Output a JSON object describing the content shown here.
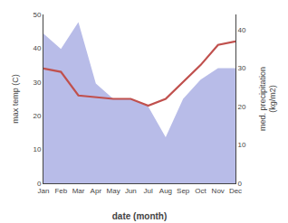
{
  "chart_data": {
    "type": "line",
    "categories": [
      "Jan",
      "Feb",
      "Mar",
      "Apr",
      "May",
      "Jun",
      "Jul",
      "Aug",
      "Sep",
      "Oct",
      "Nov",
      "Dec"
    ],
    "series": [
      {
        "type": "area",
        "axis": "y2",
        "color": "#b8bce8",
        "values": [
          39,
          35,
          42,
          26,
          22,
          22,
          20,
          12,
          22,
          27,
          30,
          30
        ]
      },
      {
        "type": "line",
        "color": "#c0504d",
        "values": [
          34,
          33,
          26,
          25.5,
          25,
          25,
          23,
          25,
          30,
          35,
          41,
          42
        ]
      }
    ],
    "xlabel": "date (month)",
    "ylabel": "max temp (C)",
    "y2label": "med. precipitation\n(kg/m2)",
    "ylim": [
      0,
      50
    ],
    "yticks": [
      0,
      10,
      20,
      30,
      40,
      50
    ],
    "y2lim": [
      0,
      44
    ],
    "y2ticks": [
      0,
      10,
      20,
      30,
      40
    ],
    "grid": false
  }
}
